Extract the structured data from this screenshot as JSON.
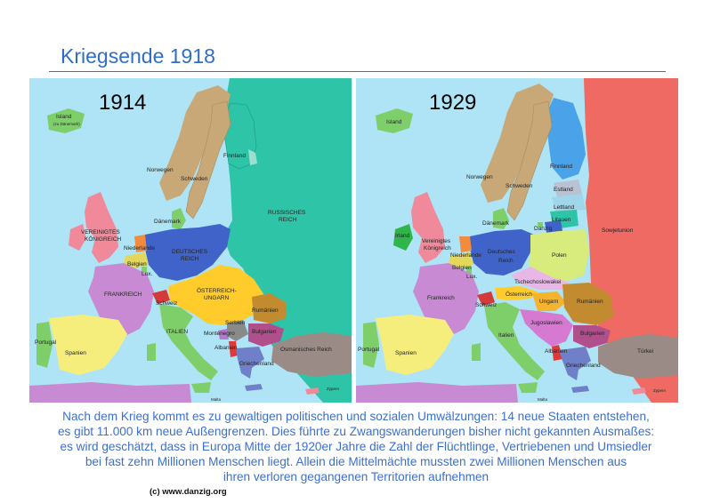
{
  "title": "Kriegsende 1918",
  "map1914": {
    "year": "1914",
    "labels": {
      "island": "Island",
      "island_sub": "(zu Dänemark)",
      "norwegen": "Norwegen",
      "schweden": "Schweden",
      "finnland": "Finnland",
      "russland1": "RUSSISCHES",
      "russland2": "REICH",
      "daenemark": "Dänemark",
      "uk1": "VEREINIGTES",
      "uk2": "KÖNIGREICH",
      "niederlande": "Niederlande",
      "belgien": "Belgien",
      "lux": "Lux.",
      "deutschland1": "DEUTSCHES",
      "deutschland2": "REICH",
      "frankreich": "FRANKREICH",
      "schweiz": "Schweiz",
      "oesterreich1": "ÖSTERREICH-",
      "oesterreich2": "UNGARN",
      "rumaenien": "Rumänien",
      "serbien": "Serbien",
      "montenegro": "Montenegro",
      "bulgarien": "Bulgarien",
      "albanien": "Albanien",
      "griechenland": "Griechenland",
      "osmanisch": "Osmanisches Reich",
      "italien": "ITALIEN",
      "spanien": "Spanien",
      "portugal": "Portugal",
      "malta": "Malta",
      "zypern": "Zypern"
    }
  },
  "map1929": {
    "year": "1929",
    "labels": {
      "island": "Island",
      "irland": "Irland",
      "norwegen": "Norwegen",
      "schweden": "Schweden",
      "finnland": "Finnland",
      "estland": "Estland",
      "lettland": "Lettland",
      "litauen": "Litauen",
      "sowjetunion": "Sowjetunion",
      "daenemark": "Dänemark",
      "danzig": "Danzig",
      "uk1": "Vereinigtes",
      "uk2": "Königreich",
      "niederlande": "Niederlande",
      "belgien": "Belgien",
      "lux": "Lux.",
      "deutschland1": "Deutsches",
      "deutschland2": "Reich",
      "polen": "Polen",
      "tschecho": "Tschechoslowakei",
      "frankreich": "Frankreich",
      "schweiz": "Schweiz",
      "oesterreich": "Österreich",
      "ungarn": "Ungarn",
      "rumaenien": "Rumänien",
      "jugoslawien": "Jugoslawien",
      "bulgarien": "Bulgarien",
      "albanien": "Albanien",
      "griechenland": "Griechenland",
      "tuerkei": "Türkei",
      "italien": "Italien",
      "spanien": "Spanien",
      "portugal": "Portugal",
      "malta": "Malta",
      "zypern": "Zypern"
    }
  },
  "caption": [
    "Nach dem Krieg kommt es zu gewaltigen politischen und sozialen Umwälzungen: 14 neue Staaten entstehen,",
    "es gibt 11.000 km neue Außengrenzen. Dies führte zu Zwangswanderungen bisher nicht gekannten Ausmaßes:",
    "es wird geschätzt, dass in Europa Mitte der 1920er Jahre die Zahl der Flüchtlinge, Vertriebenen und Umsiedler",
    "bei fast zehn Millionen Menschen liegt. Allein die Mittelmächte mussten zwei Millionen Menschen aus",
    "ihren verloren gegangenen Territorien aufnehmen"
  ],
  "copyright": "(c) www.danzig.org",
  "colors": {
    "sea": "#aee4f5",
    "russia1914": "#2ec4a7",
    "sowjetunion": "#ee6a62",
    "germany": "#3f63c9",
    "austria_hungary": "#ffcc2b",
    "france": "#c88ad2",
    "title": "#2f6ec8"
  }
}
